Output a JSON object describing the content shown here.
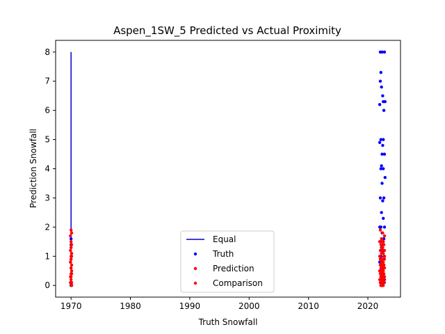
{
  "chart_data": {
    "type": "scatter",
    "title": "Aspen_1SW_5 Predicted vs Actual Proximity",
    "xlabel": "Truth Snowfall",
    "ylabel": "Prediction Snowfall",
    "xlim": [
      1967.4,
      2025.5
    ],
    "ylim": [
      -0.4,
      8.4
    ],
    "xticks": [
      1970,
      1980,
      1990,
      2000,
      2010,
      2020
    ],
    "yticks": [
      0,
      1,
      2,
      3,
      4,
      5,
      6,
      7,
      8
    ],
    "grid": false,
    "legend_position": "lower-center",
    "equal_line": {
      "name": "Equal",
      "color": "#0000cc",
      "x": [
        1970,
        1970
      ],
      "y": [
        0,
        8
      ]
    },
    "series": [
      {
        "name": "Truth",
        "color": "#0000ff",
        "x": [
          2022.1,
          2022.4,
          2022.8,
          2022.2,
          2022.1,
          2022.3,
          2022.5,
          2022.9,
          2022.0,
          2022.6,
          2022.7,
          2022.2,
          2022.6,
          2022.0,
          2022.5,
          2022.4,
          2022.8,
          2022.3,
          2022.6,
          2022.2,
          2022.9,
          2022.4,
          2022.7,
          2022.1,
          2022.5,
          2022.3,
          2022.6,
          2022.2,
          2022.8,
          2022.0,
          2022.4,
          2022.7,
          2022.1,
          2022.5,
          2022.3,
          2022.6,
          2022.2,
          2022.8,
          2022.4,
          2022.0,
          2022.7,
          2022.3,
          2022.5,
          2022.1,
          2022.6,
          2022.4,
          2022.2,
          2022.8,
          2022.5,
          2022.3,
          1970,
          1970,
          1970,
          1970
        ],
        "y": [
          8.0,
          8.0,
          8.0,
          7.3,
          7.0,
          6.8,
          6.5,
          6.3,
          6.2,
          6.3,
          6.0,
          5.0,
          5.0,
          4.9,
          4.8,
          4.5,
          4.5,
          4.1,
          4.0,
          4.0,
          3.7,
          3.5,
          3.0,
          3.0,
          2.9,
          2.5,
          2.3,
          2.0,
          2.0,
          2.0,
          1.8,
          1.6,
          1.5,
          1.5,
          1.3,
          1.2,
          1.0,
          1.0,
          0.9,
          0.8,
          0.7,
          0.6,
          0.5,
          0.5,
          0.4,
          0.3,
          0.3,
          0.2,
          0.1,
          0.0,
          1.6,
          1.4,
          0.9,
          0.0
        ]
      },
      {
        "name": "Prediction",
        "color": "#ff0000",
        "x": [
          2022.1,
          2022.5,
          2022.8,
          2022.3,
          2022.6,
          2022.0,
          2022.7,
          2022.2,
          2022.5,
          2022.4,
          2022.8,
          2022.1,
          2022.6,
          2022.3,
          2022.7,
          2022.0,
          2022.5,
          2022.2,
          2022.8,
          2022.4,
          2022.6,
          2022.3,
          2022.1,
          2022.7,
          2022.5,
          2022.2,
          2022.8,
          2022.4,
          2022.0,
          2022.6,
          2022.3,
          2022.7,
          2022.1,
          2022.5,
          2022.4,
          2022.2,
          2022.8,
          2022.6,
          2022.3,
          2022.0,
          2022.5,
          2022.7,
          2022.4,
          2022.1,
          2022.6,
          2022.8,
          2022.3,
          2022.2,
          2022.5,
          2022.4,
          1970.0,
          1970.1,
          1969.9,
          1970.0,
          1970.1,
          1970.0,
          1969.9,
          1970.1,
          1970.0,
          1970.0,
          1969.9,
          1970.1,
          1970.0,
          1970.1,
          1970.0,
          1969.9,
          1970.0,
          1970.1,
          1970.0,
          1970.1
        ],
        "y": [
          1.9,
          1.8,
          1.7,
          1.6,
          1.5,
          1.5,
          1.4,
          1.4,
          1.3,
          1.3,
          1.2,
          1.2,
          1.1,
          1.1,
          1.0,
          1.0,
          0.9,
          0.9,
          0.9,
          0.8,
          0.8,
          0.8,
          0.7,
          0.7,
          0.7,
          0.6,
          0.6,
          0.6,
          0.5,
          0.5,
          0.5,
          0.4,
          0.4,
          0.4,
          0.3,
          0.3,
          0.3,
          0.3,
          0.2,
          0.2,
          0.2,
          0.2,
          0.1,
          0.1,
          0.1,
          0.1,
          0.0,
          0.0,
          0.0,
          0.0,
          1.9,
          1.8,
          1.7,
          1.5,
          1.4,
          1.3,
          1.2,
          1.1,
          1.0,
          0.9,
          0.8,
          0.7,
          0.6,
          0.5,
          0.4,
          0.3,
          0.2,
          0.1,
          0.05,
          0.0
        ]
      },
      {
        "name": "Comparison",
        "color": "#ff0000",
        "x": [
          2022.2,
          2022.6,
          2022.4,
          2022.8,
          2022.1,
          2022.5,
          2022.3,
          2022.7,
          2022.0,
          2022.6,
          2022.4,
          2022.2,
          2022.8,
          2022.5,
          2022.3,
          2022.1,
          2022.7,
          2022.4,
          2022.6,
          2022.2,
          1970.0,
          1970.1,
          1969.9,
          1970.0,
          1970.1,
          1970.0,
          1969.9,
          1970.1
        ],
        "y": [
          1.5,
          1.4,
          1.2,
          1.0,
          0.9,
          0.8,
          0.7,
          0.6,
          0.5,
          0.5,
          0.4,
          0.3,
          0.3,
          0.2,
          0.2,
          0.1,
          0.1,
          0.05,
          0.0,
          0.0,
          1.3,
          1.0,
          0.8,
          0.6,
          0.4,
          0.3,
          0.1,
          0.0
        ]
      }
    ]
  }
}
